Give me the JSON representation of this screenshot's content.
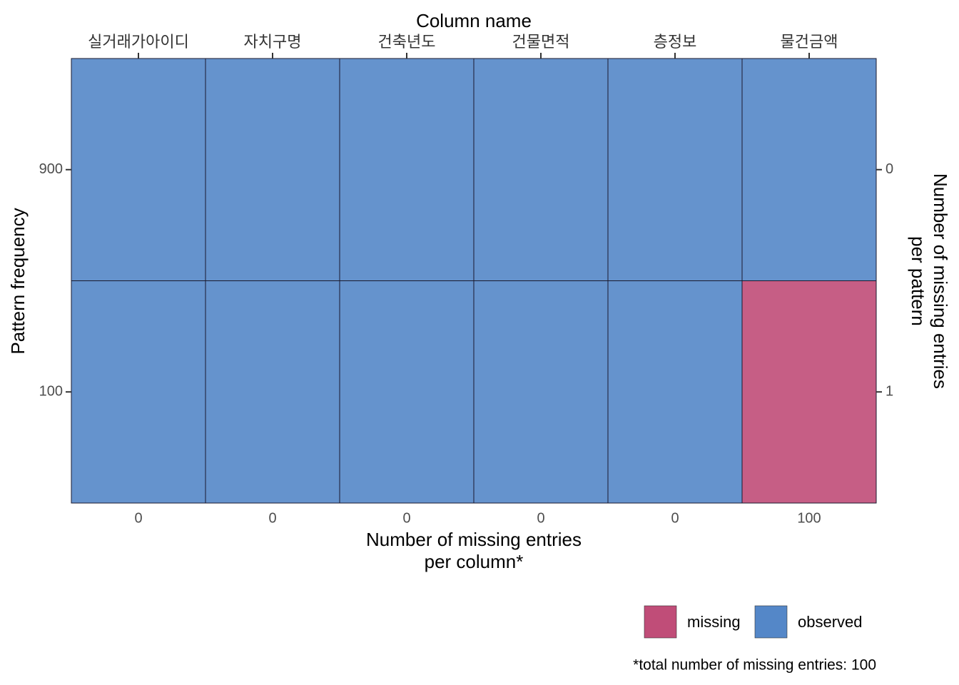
{
  "chart_data": {
    "type": "heatmap",
    "title": "Column name",
    "columns": [
      "실거래가아이디",
      "자치구명",
      "건축년도",
      "건물면적",
      "층정보",
      "물건금액"
    ],
    "missing_per_column": [
      0,
      0,
      0,
      0,
      0,
      100
    ],
    "pattern_frequency": [
      900,
      100
    ],
    "missing_per_pattern": [
      0,
      1
    ],
    "cells": [
      [
        0,
        0,
        0,
        0,
        0,
        0
      ],
      [
        0,
        0,
        0,
        0,
        0,
        1
      ]
    ],
    "legend": [
      {
        "name": "missing",
        "color": "#c04d78"
      },
      {
        "name": "observed",
        "color": "#5487c8"
      }
    ],
    "x_label": "Number of missing entries\nper column*",
    "y_label": "Pattern frequency",
    "y2_label": "Number of missing entries\nper pattern",
    "footnote": "*total number of missing entries: 100"
  }
}
